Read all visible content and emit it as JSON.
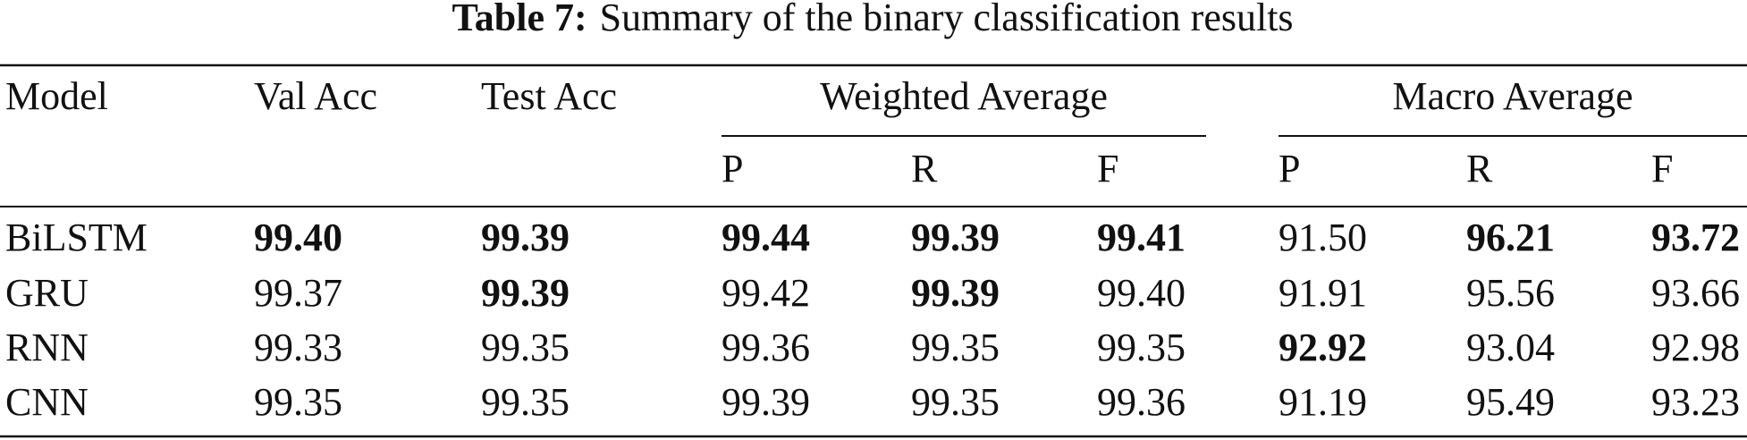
{
  "title": {
    "label": "Table 7:",
    "text": "Summary of the binary classification results"
  },
  "table": {
    "header": {
      "columns": [
        "Model",
        "Val Acc",
        "Test Acc"
      ],
      "groups": [
        {
          "label": "Weighted Average",
          "sub": [
            "P",
            "R",
            "F"
          ]
        },
        {
          "label": "Macro Average",
          "sub": [
            "P",
            "R",
            "F"
          ]
        }
      ]
    },
    "rows": [
      {
        "cells": [
          "BiLSTM",
          "99.40",
          "99.39",
          "99.44",
          "99.39",
          "99.41",
          "91.50",
          "96.21",
          "93.72"
        ],
        "bold": [
          false,
          true,
          true,
          true,
          true,
          true,
          false,
          true,
          true
        ]
      },
      {
        "cells": [
          "GRU",
          "99.37",
          "99.39",
          "99.42",
          "99.39",
          "99.40",
          "91.91",
          "95.56",
          "93.66"
        ],
        "bold": [
          false,
          false,
          true,
          false,
          true,
          false,
          false,
          false,
          false
        ]
      },
      {
        "cells": [
          "RNN",
          "99.33",
          "99.35",
          "99.36",
          "99.35",
          "99.35",
          "92.92",
          "93.04",
          "92.98"
        ],
        "bold": [
          false,
          false,
          false,
          false,
          false,
          false,
          true,
          false,
          false
        ]
      },
      {
        "cells": [
          "CNN",
          "99.35",
          "99.35",
          "99.39",
          "99.35",
          "99.36",
          "91.19",
          "95.49",
          "93.23"
        ],
        "bold": [
          false,
          false,
          false,
          false,
          false,
          false,
          false,
          false,
          false
        ]
      }
    ]
  }
}
